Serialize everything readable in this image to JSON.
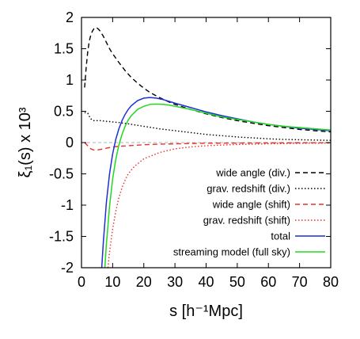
{
  "chart_data": {
    "type": "line",
    "xlabel": "s [h⁻¹Mpc]",
    "ylabel": "ξ₁(s) x 10³",
    "xlim": [
      0,
      80
    ],
    "ylim": [
      -2,
      2
    ],
    "x_ticks": [
      "0",
      "10",
      "20",
      "30",
      "40",
      "50",
      "60",
      "70",
      "80"
    ],
    "y_ticks": [
      "-2",
      "-1.5",
      "-1",
      "-0.5",
      "0",
      "0.5",
      "1",
      "1.5",
      "2"
    ],
    "zero_line": true,
    "grid": false,
    "legend_position": "right",
    "series": [
      {
        "name": "wide angle (div.)",
        "color": "#000000",
        "dash": "dashed",
        "x": [
          1,
          1.5,
          2,
          2.5,
          3,
          3.5,
          4,
          4.5,
          5,
          5.5,
          6,
          7,
          8,
          9,
          10,
          12,
          14,
          16,
          18,
          20,
          22,
          25,
          28,
          30,
          35,
          40,
          45,
          50,
          55,
          60,
          65,
          70,
          75,
          80
        ],
        "y": [
          0.88,
          1.2,
          1.45,
          1.62,
          1.72,
          1.78,
          1.82,
          1.84,
          1.83,
          1.81,
          1.78,
          1.7,
          1.6,
          1.5,
          1.42,
          1.28,
          1.15,
          1.04,
          0.95,
          0.87,
          0.8,
          0.72,
          0.65,
          0.61,
          0.53,
          0.46,
          0.4,
          0.35,
          0.31,
          0.27,
          0.24,
          0.21,
          0.19,
          0.17
        ]
      },
      {
        "name": "grav. redshift (div.)",
        "color": "#000000",
        "dash": "dotted",
        "x": [
          1,
          2,
          2.5,
          3,
          3.5,
          4,
          5,
          6,
          8,
          10,
          12,
          15,
          20,
          25,
          30,
          35,
          40,
          45,
          50,
          55,
          60,
          65,
          70,
          75,
          80
        ],
        "y": [
          0.48,
          0.47,
          0.42,
          0.38,
          0.36,
          0.35,
          0.35,
          0.35,
          0.34,
          0.33,
          0.32,
          0.3,
          0.26,
          0.22,
          0.19,
          0.16,
          0.13,
          0.11,
          0.09,
          0.075,
          0.06,
          0.05,
          0.045,
          0.04,
          0.035
        ]
      },
      {
        "name": "wide angle (shift)",
        "color": "#e8302a",
        "dash": "dashed",
        "x": [
          1,
          2,
          3,
          4,
          5,
          6,
          7,
          8,
          10,
          12,
          15,
          20,
          25,
          30,
          35,
          40,
          50,
          60,
          70,
          80
        ],
        "y": [
          0.0,
          -0.05,
          -0.1,
          -0.12,
          -0.12,
          -0.11,
          -0.1,
          -0.09,
          -0.07,
          -0.06,
          -0.05,
          -0.035,
          -0.025,
          -0.02,
          -0.015,
          -0.01,
          -0.008,
          -0.005,
          -0.003,
          -0.002
        ]
      },
      {
        "name": "grav. redshift (shift)",
        "color": "#e8302a",
        "dash": "dotted",
        "x": [
          8.5,
          9,
          10,
          11,
          12,
          13,
          14,
          15,
          17,
          20,
          25,
          30,
          35,
          40,
          50,
          60,
          70,
          80
        ],
        "y": [
          -2.0,
          -1.75,
          -1.38,
          -1.1,
          -0.88,
          -0.72,
          -0.6,
          -0.5,
          -0.38,
          -0.26,
          -0.16,
          -0.1,
          -0.07,
          -0.05,
          -0.03,
          -0.02,
          -0.012,
          -0.008
        ]
      },
      {
        "name": "total",
        "color": "#1d2fd6",
        "dash": "solid",
        "x": [
          6.5,
          7,
          8,
          9,
          10,
          11,
          12,
          13,
          14,
          15,
          16,
          18,
          20,
          22,
          24,
          26,
          28,
          30,
          35,
          40,
          45,
          50,
          55,
          60,
          65,
          70,
          75,
          80
        ],
        "y": [
          -2.0,
          -1.6,
          -0.95,
          -0.5,
          -0.18,
          0.05,
          0.22,
          0.35,
          0.45,
          0.53,
          0.59,
          0.67,
          0.71,
          0.72,
          0.71,
          0.69,
          0.66,
          0.63,
          0.56,
          0.49,
          0.43,
          0.38,
          0.33,
          0.29,
          0.26,
          0.23,
          0.21,
          0.19
        ]
      },
      {
        "name": "streaming model (full sky)",
        "color": "#22d81e",
        "dash": "solid",
        "x": [
          7.5,
          8,
          9,
          10,
          11,
          12,
          13,
          14,
          15,
          16,
          18,
          20,
          22,
          24,
          26,
          28,
          30,
          35,
          40,
          45,
          50,
          55,
          60,
          65,
          70,
          75,
          80
        ],
        "y": [
          -2.0,
          -1.62,
          -1.02,
          -0.58,
          -0.27,
          -0.04,
          0.13,
          0.26,
          0.36,
          0.43,
          0.53,
          0.58,
          0.61,
          0.615,
          0.61,
          0.6,
          0.58,
          0.53,
          0.47,
          0.41,
          0.37,
          0.33,
          0.29,
          0.26,
          0.24,
          0.22,
          0.2
        ]
      }
    ]
  }
}
